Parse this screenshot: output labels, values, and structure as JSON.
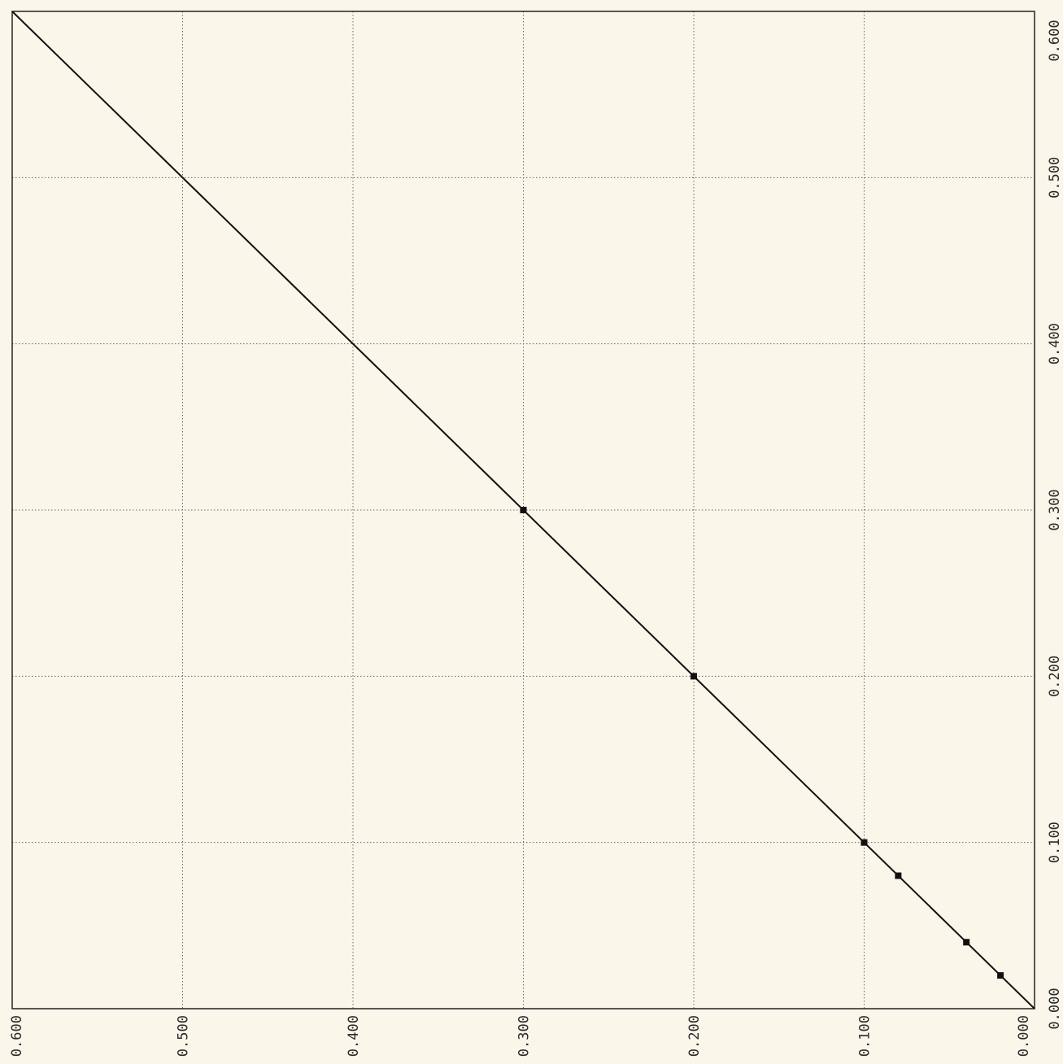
{
  "chart_data": {
    "type": "line",
    "title": "",
    "xlabel": "",
    "ylabel": "",
    "x_axis": {
      "position": "bottom",
      "direction": "decreasing-left-to-right",
      "range": [
        0.0,
        0.6
      ],
      "ticks": [
        "0.600",
        "0.500",
        "0.400",
        "0.300",
        "0.200",
        "0.100",
        "0.000"
      ]
    },
    "y_axis": {
      "position": "right",
      "range": [
        0.0,
        0.6
      ],
      "ticks": [
        "0.600",
        "0.500",
        "0.400",
        "0.300",
        "0.200",
        "0.100",
        "0.000"
      ]
    },
    "grid": true,
    "legend": "none",
    "line": {
      "x": [
        0.0,
        0.6
      ],
      "y": [
        0.0,
        0.6
      ]
    },
    "points": [
      {
        "x": 0.3,
        "y": 0.3
      },
      {
        "x": 0.2,
        "y": 0.2
      },
      {
        "x": 0.1,
        "y": 0.1
      },
      {
        "x": 0.08,
        "y": 0.08
      },
      {
        "x": 0.04,
        "y": 0.04
      },
      {
        "x": 0.02,
        "y": 0.02
      }
    ],
    "colors": {
      "background": "#fbf6ea",
      "line": "#111111",
      "grid": "#6d6a63"
    }
  }
}
